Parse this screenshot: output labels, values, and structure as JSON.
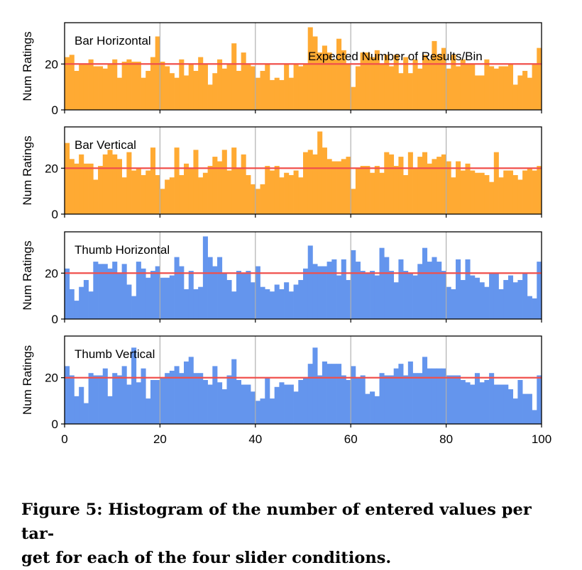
{
  "figure": {
    "caption_line1": "Figure 5: Histogram of the number of entered values per tar-",
    "caption_line2": "get for each of the four slider conditions."
  },
  "colors": {
    "bar_orange": "#FFAA33",
    "bar_blue": "#6495ED",
    "reference_line": "#F0504C",
    "grid": "#b0b0b0"
  },
  "chart_data": [
    {
      "type": "bar",
      "title": "Bar Horizontal",
      "ylabel": "Num Ratings",
      "xlabel": "",
      "xlim": [
        0,
        100
      ],
      "ylim": [
        0,
        38
      ],
      "yticks": [
        0,
        20
      ],
      "xticks": [
        0,
        20,
        40,
        60,
        80,
        100
      ],
      "grid_x": true,
      "reference_line": {
        "y": 20,
        "label": "Expected Number of Results/Bin"
      },
      "bin_width": 1,
      "values": [
        23,
        24,
        17,
        20,
        20,
        22,
        19,
        19,
        18,
        20,
        22,
        14,
        21,
        22,
        21,
        21,
        14,
        17,
        23,
        32,
        21,
        19,
        16,
        14,
        22,
        15,
        20,
        17,
        23,
        20,
        11,
        16,
        22,
        18,
        20,
        29,
        17,
        25,
        20,
        19,
        14,
        17,
        20,
        13,
        14,
        13,
        20,
        14,
        20,
        19,
        20,
        36,
        32,
        25,
        28,
        25,
        22,
        31,
        26,
        20,
        10,
        19,
        25,
        25,
        23,
        26,
        20,
        24,
        19,
        24,
        16,
        23,
        16,
        22,
        18,
        24,
        22,
        30,
        24,
        27,
        18,
        24,
        19,
        22,
        20,
        20,
        15,
        15,
        22,
        19,
        18,
        19,
        19,
        20,
        11,
        15,
        17,
        14,
        20,
        27
      ]
    },
    {
      "type": "bar",
      "title": "Bar Vertical",
      "ylabel": "Num Ratings",
      "xlabel": "",
      "xlim": [
        0,
        100
      ],
      "ylim": [
        0,
        38
      ],
      "yticks": [
        0,
        20
      ],
      "xticks": [
        0,
        20,
        40,
        60,
        80,
        100
      ],
      "grid_x": true,
      "reference_line": {
        "y": 20,
        "label": ""
      },
      "bin_width": 1,
      "values": [
        31,
        24,
        22,
        26,
        22,
        22,
        15,
        21,
        26,
        28,
        26,
        24,
        16,
        27,
        19,
        20,
        17,
        19,
        29,
        17,
        11,
        15,
        16,
        29,
        17,
        22,
        20,
        28,
        16,
        18,
        21,
        25,
        23,
        28,
        19,
        29,
        20,
        26,
        17,
        13,
        11,
        13,
        21,
        19,
        21,
        16,
        18,
        17,
        19,
        16,
        27,
        28,
        26,
        36,
        29,
        24,
        23,
        23,
        24,
        25,
        11,
        20,
        21,
        21,
        18,
        21,
        18,
        27,
        26,
        21,
        25,
        17,
        27,
        20,
        25,
        27,
        22,
        24,
        25,
        26,
        23,
        16,
        23,
        19,
        22,
        19,
        18,
        18,
        17,
        14,
        27,
        16,
        19,
        19,
        17,
        15,
        19,
        20,
        19,
        21
      ]
    },
    {
      "type": "bar",
      "title": "Thumb Horizontal",
      "ylabel": "Num Ratings",
      "xlabel": "",
      "xlim": [
        0,
        100
      ],
      "ylim": [
        0,
        38
      ],
      "yticks": [
        0,
        20
      ],
      "xticks": [
        0,
        20,
        40,
        60,
        80,
        100
      ],
      "grid_x": true,
      "reference_line": {
        "y": 20,
        "label": ""
      },
      "bin_width": 1,
      "values": [
        22,
        13,
        8,
        14,
        17,
        12,
        25,
        24,
        24,
        22,
        25,
        20,
        24,
        15,
        10,
        25,
        22,
        18,
        21,
        23,
        18,
        18,
        19,
        27,
        23,
        13,
        21,
        13,
        14,
        36,
        27,
        23,
        27,
        20,
        17,
        12,
        21,
        20,
        21,
        16,
        23,
        14,
        13,
        12,
        15,
        13,
        16,
        12,
        15,
        17,
        22,
        32,
        24,
        23,
        23,
        25,
        26,
        19,
        26,
        17,
        30,
        25,
        21,
        20,
        21,
        19,
        31,
        27,
        21,
        16,
        26,
        21,
        20,
        19,
        24,
        31,
        25,
        27,
        25,
        21,
        14,
        13,
        26,
        17,
        26,
        19,
        18,
        16,
        14,
        20,
        20,
        13,
        17,
        19,
        16,
        17,
        20,
        10,
        9,
        25
      ]
    },
    {
      "type": "bar",
      "title": "Thumb Vertical",
      "ylabel": "Num Ratings",
      "xlabel": "",
      "xlim": [
        0,
        100
      ],
      "ylim": [
        0,
        38
      ],
      "yticks": [
        0,
        20
      ],
      "xticks": [
        0,
        20,
        40,
        60,
        80,
        100
      ],
      "grid_x": true,
      "reference_line": {
        "y": 20,
        "label": ""
      },
      "bin_width": 1,
      "values": [
        25,
        21,
        12,
        16,
        9,
        22,
        21,
        21,
        24,
        12,
        22,
        21,
        25,
        17,
        33,
        18,
        24,
        11,
        19,
        19,
        20,
        22,
        23,
        25,
        22,
        27,
        29,
        22,
        22,
        19,
        17,
        25,
        18,
        15,
        21,
        28,
        19,
        17,
        17,
        14,
        10,
        11,
        20,
        11,
        16,
        18,
        17,
        17,
        14,
        19,
        20,
        26,
        33,
        21,
        27,
        26,
        26,
        26,
        21,
        19,
        25,
        20,
        21,
        13,
        14,
        12,
        22,
        21,
        21,
        24,
        26,
        21,
        27,
        22,
        22,
        29,
        24,
        24,
        24,
        24,
        21,
        21,
        21,
        19,
        18,
        17,
        22,
        18,
        19,
        22,
        17,
        17,
        17,
        15,
        11,
        19,
        13,
        13,
        6,
        21
      ]
    }
  ]
}
